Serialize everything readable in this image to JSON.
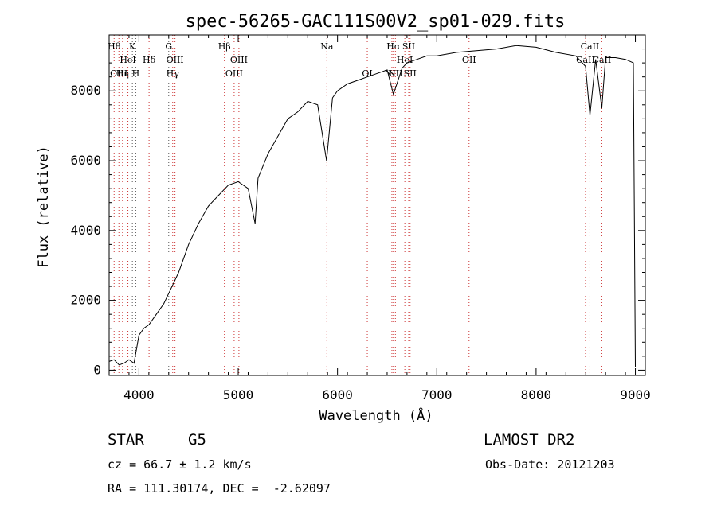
{
  "chart_data": {
    "type": "line",
    "title": "spec-56265-GAC111S00V2_sp01-029.fits",
    "xlabel": "Wavelength (Å)",
    "ylabel": "Flux (relative)",
    "xlim": [
      3700,
      9100
    ],
    "ylim": [
      -150,
      9600
    ],
    "xticks": [
      4000,
      5000,
      6000,
      7000,
      8000,
      9000
    ],
    "yticks": [
      0,
      2000,
      4000,
      6000,
      8000
    ],
    "xtick_labels": [
      "4000",
      "5000",
      "6000",
      "7000",
      "8000",
      "9000"
    ],
    "ytick_labels": [
      "0",
      "2000",
      "4000",
      "6000",
      "8000"
    ],
    "grid": false,
    "series": [
      {
        "x": [
          3700,
          3750,
          3800,
          3850,
          3900,
          3950,
          4000,
          4050,
          4100,
          4150,
          4200,
          4250,
          4300,
          4350,
          4400,
          4450,
          4500,
          4600,
          4700,
          4800,
          4900,
          5000,
          5100,
          5170,
          5200,
          5300,
          5400,
          5500,
          5600,
          5700,
          5800,
          5890,
          5950,
          6000,
          6100,
          6200,
          6300,
          6400,
          6500,
          6563,
          6650,
          6700,
          6800,
          6900,
          7000,
          7200,
          7400,
          7600,
          7800,
          8000,
          8200,
          8400,
          8498,
          8542,
          8600,
          8662,
          8700,
          8800,
          8900,
          8980,
          9000
        ],
        "y": [
          250,
          300,
          150,
          200,
          300,
          200,
          1000,
          1200,
          1300,
          1500,
          1700,
          1900,
          2200,
          2500,
          2800,
          3200,
          3600,
          4200,
          4700,
          5000,
          5300,
          5400,
          5200,
          4200,
          5500,
          6200,
          6700,
          7200,
          7400,
          7700,
          7600,
          6000,
          7800,
          8000,
          8200,
          8300,
          8400,
          8500,
          8600,
          7900,
          8650,
          8800,
          8900,
          9000,
          9000,
          9100,
          9150,
          9200,
          9300,
          9250,
          9100,
          9000,
          8700,
          7300,
          8900,
          7500,
          8950,
          8950,
          8900,
          8800,
          100
        ]
      }
    ],
    "lines": [
      {
        "x": 3750,
        "label": "Hθ",
        "row": 0,
        "color": "red"
      },
      {
        "x": 3798,
        "label": "OIII",
        "row": 2,
        "color": "red"
      },
      {
        "x": 3835,
        "label": "Hη",
        "row": 2,
        "color": "red"
      },
      {
        "x": 3889,
        "label": "HeI",
        "row": 1,
        "color": "red"
      },
      {
        "x": 3934,
        "label": "K",
        "row": 0,
        "color": "black"
      },
      {
        "x": 3968,
        "label": "H",
        "row": 2,
        "color": "black"
      },
      {
        "x": 4102,
        "label": "Hδ",
        "row": 1,
        "color": "red"
      },
      {
        "x": 4300,
        "label": "G",
        "row": 0,
        "color": "black"
      },
      {
        "x": 4340,
        "label": "Hγ",
        "row": 2,
        "color": "red"
      },
      {
        "x": 4363,
        "label": "OIII",
        "row": 1,
        "color": "red"
      },
      {
        "x": 4861,
        "label": "Hβ",
        "row": 0,
        "color": "red"
      },
      {
        "x": 4959,
        "label": "OIII",
        "row": 2,
        "color": "red"
      },
      {
        "x": 5007,
        "label": "OIII",
        "row": 1,
        "color": "red"
      },
      {
        "x": 5893,
        "label": "Na",
        "row": 0,
        "color": "red"
      },
      {
        "x": 6300,
        "label": "OI",
        "row": 3,
        "color": "red"
      },
      {
        "x": 6548,
        "label": "NII",
        "row": 3,
        "color": "red"
      },
      {
        "x": 6563,
        "label": "Hα",
        "row": 0,
        "color": "red"
      },
      {
        "x": 6583,
        "label": "NII",
        "row": 2,
        "color": "red"
      },
      {
        "x": 6678,
        "label": "HeI",
        "row": 1,
        "color": "red"
      },
      {
        "x": 6717,
        "label": "SII",
        "row": 0,
        "color": "red"
      },
      {
        "x": 6731,
        "label": "SII",
        "row": 3,
        "color": "red"
      },
      {
        "x": 7325,
        "label": "OII",
        "row": 1,
        "color": "red"
      },
      {
        "x": 8498,
        "label": "CaII",
        "row": 1,
        "color": "red"
      },
      {
        "x": 8542,
        "label": "CaII",
        "row": 0,
        "color": "red"
      },
      {
        "x": 8662,
        "label": "CaII",
        "row": 1,
        "color": "red"
      }
    ]
  },
  "info": {
    "object_class": "STAR",
    "subclass": "G5",
    "survey": "LAMOST DR2",
    "cz": "cz = 66.7 ± 1.2 km/s",
    "obs_date": "Obs-Date: 20121203",
    "coords": "RA = 111.30174, DEC =  -2.62097"
  }
}
